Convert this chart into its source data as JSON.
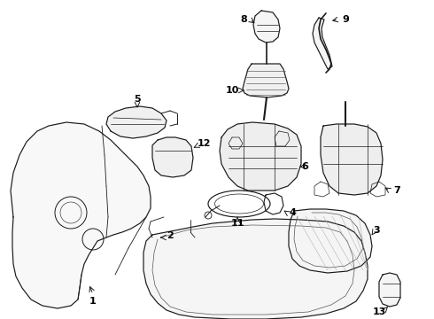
{
  "bg_color": "#ffffff",
  "line_color": "#1a1a1a",
  "label_color": "#000000",
  "figsize": [
    4.9,
    3.6
  ],
  "dpi": 100,
  "lw": 0.85
}
